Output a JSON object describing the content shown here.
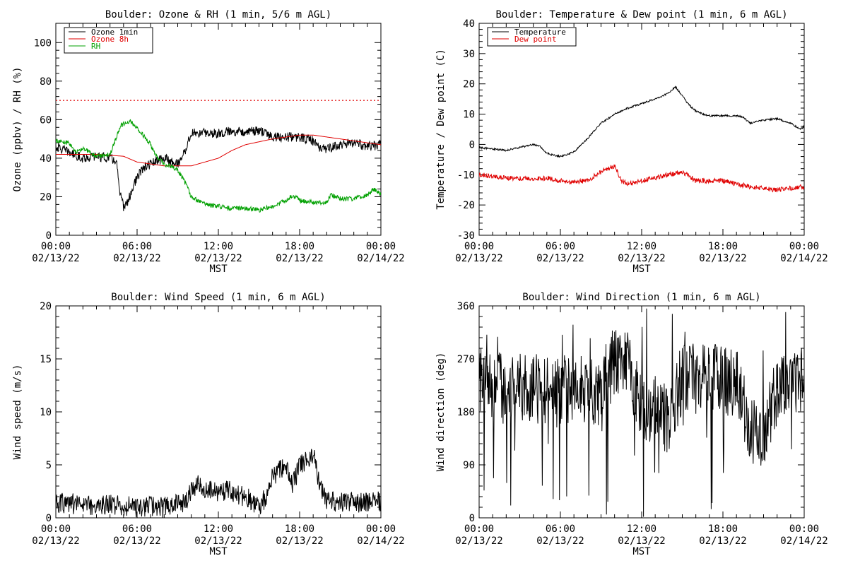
{
  "chart_data": [
    {
      "id": "ozone_rh",
      "type": "line",
      "title": "Boulder: Ozone & RH (1 min, 5/6 m AGL)",
      "xlabel": "MST",
      "ylabel": "Ozone (ppbv) / RH (%)",
      "xlim": [
        0,
        24
      ],
      "ylim": [
        0,
        110
      ],
      "yticks": [
        0,
        20,
        40,
        60,
        80,
        100
      ],
      "xtick_times": [
        "00:00",
        "06:00",
        "12:00",
        "18:00",
        "00:00"
      ],
      "xtick_dates": [
        "02/13/22",
        "02/13/22",
        "02/13/22",
        "02/13/22",
        "02/14/22"
      ],
      "reference_line": {
        "y": 70,
        "color": "#e00000",
        "style": "dotted"
      },
      "legend": "top-left",
      "series": [
        {
          "name": "Ozone 1min",
          "color": "#000000",
          "noise": 2.5,
          "points": [
            [
              0,
              46
            ],
            [
              1,
              43
            ],
            [
              2,
              40
            ],
            [
              3,
              41
            ],
            [
              4,
              40
            ],
            [
              4.5,
              38
            ],
            [
              4.7,
              22
            ],
            [
              5,
              15
            ],
            [
              5.3,
              17
            ],
            [
              5.7,
              25
            ],
            [
              6,
              30
            ],
            [
              6.5,
              35
            ],
            [
              7,
              37
            ],
            [
              8,
              40
            ],
            [
              9,
              37
            ],
            [
              9.5,
              43
            ],
            [
              10,
              53
            ],
            [
              11,
              53
            ],
            [
              12,
              53
            ],
            [
              13,
              54
            ],
            [
              14,
              54
            ],
            [
              15,
              54
            ],
            [
              15.5,
              53
            ],
            [
              16,
              51
            ],
            [
              17,
              51
            ],
            [
              18,
              51
            ],
            [
              19,
              49
            ],
            [
              19.5,
              45
            ],
            [
              20,
              45
            ],
            [
              21,
              47
            ],
            [
              22,
              48
            ],
            [
              23,
              46
            ],
            [
              24,
              47
            ]
          ]
        },
        {
          "name": "Ozone 8h",
          "color": "#e00000",
          "noise": 0,
          "points": [
            [
              0,
              42
            ],
            [
              3,
              42
            ],
            [
              5,
              41
            ],
            [
              6,
              38
            ],
            [
              8,
              36
            ],
            [
              10,
              36
            ],
            [
              11,
              38
            ],
            [
              12,
              40
            ],
            [
              13,
              44
            ],
            [
              14,
              47
            ],
            [
              16,
              50
            ],
            [
              18,
              52
            ],
            [
              19,
              52
            ],
            [
              20,
              51
            ],
            [
              22,
              49
            ],
            [
              24,
              47
            ]
          ]
        },
        {
          "name": "RH",
          "color": "#00a000",
          "noise": 1.2,
          "points": [
            [
              0,
              49
            ],
            [
              1,
              48
            ],
            [
              1.5,
              43
            ],
            [
              2,
              45
            ],
            [
              3,
              41
            ],
            [
              4,
              42
            ],
            [
              4.8,
              57
            ],
            [
              5.5,
              59
            ],
            [
              6,
              56
            ],
            [
              7,
              47
            ],
            [
              7.5,
              40
            ],
            [
              8,
              37
            ],
            [
              9,
              34
            ],
            [
              9.5,
              28
            ],
            [
              10,
              20
            ],
            [
              11,
              16
            ],
            [
              12,
              15
            ],
            [
              13,
              14
            ],
            [
              14,
              14
            ],
            [
              15,
              13
            ],
            [
              16,
              15
            ],
            [
              17,
              18
            ],
            [
              17.5,
              21
            ],
            [
              18,
              18
            ],
            [
              19,
              17
            ],
            [
              20,
              17
            ],
            [
              20.3,
              21
            ],
            [
              21,
              19
            ],
            [
              22,
              19
            ],
            [
              23,
              21
            ],
            [
              23.5,
              24
            ],
            [
              24,
              21
            ]
          ]
        }
      ]
    },
    {
      "id": "temp_dew",
      "type": "line",
      "title": "Boulder: Temperature & Dew point (1 min, 6 m AGL)",
      "xlabel": "MST",
      "ylabel": "Temperature / Dew point (C)",
      "xlim": [
        0,
        24
      ],
      "ylim": [
        -30,
        40
      ],
      "yticks": [
        -30,
        -20,
        -10,
        0,
        10,
        20,
        30,
        40
      ],
      "xtick_times": [
        "00:00",
        "06:00",
        "12:00",
        "18:00",
        "00:00"
      ],
      "xtick_dates": [
        "02/13/22",
        "02/13/22",
        "02/13/22",
        "02/13/22",
        "02/14/22"
      ],
      "legend": "top-left",
      "series": [
        {
          "name": "Temperature",
          "color": "#000000",
          "noise": 0.3,
          "points": [
            [
              0,
              -1
            ],
            [
              1,
              -1.5
            ],
            [
              2,
              -2
            ],
            [
              3,
              -1
            ],
            [
              4,
              0
            ],
            [
              4.5,
              -0.5
            ],
            [
              5,
              -3
            ],
            [
              6,
              -4
            ],
            [
              7,
              -2.5
            ],
            [
              8,
              2
            ],
            [
              9,
              7
            ],
            [
              10,
              10
            ],
            [
              11,
              12
            ],
            [
              12,
              13.5
            ],
            [
              13,
              15
            ],
            [
              14,
              17
            ],
            [
              14.5,
              19
            ],
            [
              15,
              16
            ],
            [
              15.5,
              13
            ],
            [
              16,
              11
            ],
            [
              16.5,
              10
            ],
            [
              17,
              9.5
            ],
            [
              18,
              9.5
            ],
            [
              19,
              9.5
            ],
            [
              19.5,
              9
            ],
            [
              20,
              7
            ],
            [
              21,
              8
            ],
            [
              22,
              8.5
            ],
            [
              23,
              7
            ],
            [
              23.7,
              5
            ],
            [
              24,
              6
            ]
          ]
        },
        {
          "name": "Dew point",
          "color": "#e00000",
          "noise": 0.8,
          "points": [
            [
              0,
              -10
            ],
            [
              2,
              -11
            ],
            [
              4,
              -11.5
            ],
            [
              5,
              -11
            ],
            [
              6,
              -12
            ],
            [
              7,
              -12.5
            ],
            [
              8,
              -12
            ],
            [
              9,
              -9
            ],
            [
              10,
              -7
            ],
            [
              10.5,
              -12
            ],
            [
              11,
              -13
            ],
            [
              12,
              -12
            ],
            [
              13,
              -11
            ],
            [
              14,
              -10
            ],
            [
              15,
              -9
            ],
            [
              16,
              -12
            ],
            [
              17,
              -12
            ],
            [
              18,
              -12
            ],
            [
              19,
              -13
            ],
            [
              20,
              -14
            ],
            [
              21,
              -14.5
            ],
            [
              22,
              -15
            ],
            [
              23,
              -14.5
            ],
            [
              24,
              -14
            ]
          ]
        }
      ]
    },
    {
      "id": "wind_speed",
      "type": "line",
      "title": "Boulder: Wind Speed (1 min, 6 m AGL)",
      "xlabel": "MST",
      "ylabel": "Wind speed (m/s)",
      "xlim": [
        0,
        24
      ],
      "ylim": [
        0,
        20
      ],
      "yticks": [
        0,
        5,
        10,
        15,
        20
      ],
      "xtick_times": [
        "00:00",
        "06:00",
        "12:00",
        "18:00",
        "00:00"
      ],
      "xtick_dates": [
        "02/13/22",
        "02/13/22",
        "02/13/22",
        "02/13/22",
        "02/14/22"
      ],
      "series": [
        {
          "name": "",
          "color": "#000000",
          "noise": 1.0,
          "points": [
            [
              0,
              1.5
            ],
            [
              2,
              1.2
            ],
            [
              4,
              1.2
            ],
            [
              6,
              1.0
            ],
            [
              8,
              1.0
            ],
            [
              9.5,
              1.5
            ],
            [
              10.5,
              3.5
            ],
            [
              11,
              2.5
            ],
            [
              12,
              2.5
            ],
            [
              13,
              2.5
            ],
            [
              14,
              2
            ],
            [
              15,
              1.0
            ],
            [
              15.5,
              2
            ],
            [
              16,
              4
            ],
            [
              17,
              5
            ],
            [
              17.5,
              3
            ],
            [
              18,
              5
            ],
            [
              19,
              6
            ],
            [
              19.5,
              3
            ],
            [
              20,
              1.5
            ],
            [
              22,
              1.5
            ],
            [
              24,
              1.5
            ]
          ]
        }
      ]
    },
    {
      "id": "wind_dir",
      "type": "line",
      "title": "Boulder: Wind Direction (1 min, 6 m AGL)",
      "xlabel": "MST",
      "ylabel": "Wind direction (deg)",
      "xlim": [
        0,
        24
      ],
      "ylim": [
        0,
        360
      ],
      "yticks": [
        0,
        90,
        180,
        270,
        360
      ],
      "xtick_times": [
        "00:00",
        "06:00",
        "12:00",
        "18:00",
        "00:00"
      ],
      "xtick_dates": [
        "02/13/22",
        "02/13/22",
        "02/13/22",
        "02/13/22",
        "02/14/22"
      ],
      "series": [
        {
          "name": "",
          "color": "#000000",
          "noise": 60,
          "points": [
            [
              0,
              230
            ],
            [
              3,
              220
            ],
            [
              6,
              220
            ],
            [
              9,
              215
            ],
            [
              10,
              270
            ],
            [
              11,
              265
            ],
            [
              12,
              180
            ],
            [
              13,
              190
            ],
            [
              14,
              160
            ],
            [
              15,
              240
            ],
            [
              16,
              235
            ],
            [
              17,
              240
            ],
            [
              18,
              230
            ],
            [
              19,
              230
            ],
            [
              20,
              150
            ],
            [
              21,
              140
            ],
            [
              22,
              220
            ],
            [
              23,
              240
            ],
            [
              24,
              230
            ]
          ]
        }
      ]
    }
  ]
}
